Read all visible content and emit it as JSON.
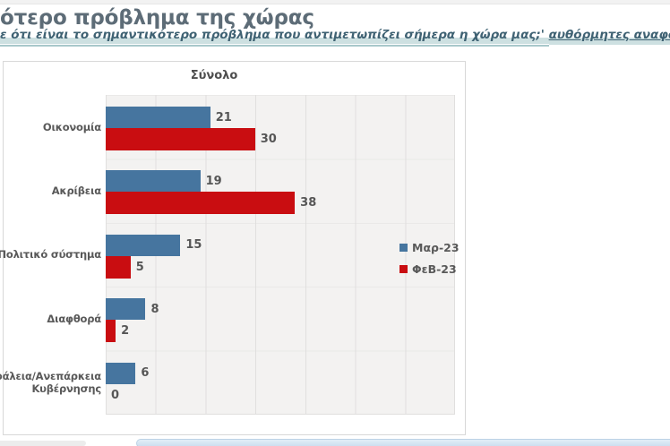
{
  "header": {
    "title": "ότερο πρόβλημα της χώρας",
    "subtitle_main": "ε ότι  είναι το σημαντικότερο πρόβλημα που αντιμετωπίζει σήμερα η χώρα μας;' ",
    "subtitle_link": "αυθόρμητες αναφορές"
  },
  "colors": {
    "series_mar": "#46759f",
    "series_feb": "#c90d11",
    "plot_background": "#f3f2f1",
    "subtitle_highlight": "#cde0e1",
    "footer_bar": "#d4e4f2"
  },
  "chart_data": {
    "type": "bar",
    "orientation": "horizontal",
    "title": "Σύνολο",
    "categories": [
      "Οικονομία",
      "Ακρίβεια",
      "τικοί-Πολιτικό σύστημα",
      "Διαφθορά",
      "νασφάλεια/Ανεπάρκεια\nΚυβέρνησης"
    ],
    "series": [
      {
        "name": "Μαρ-23",
        "color": "#46759f",
        "values": [
          21,
          19,
          15,
          8,
          6
        ]
      },
      {
        "name": "ΦεΒ-23",
        "color": "#c90d11",
        "values": [
          30,
          38,
          5,
          2,
          0
        ]
      }
    ],
    "xlim": [
      0,
      70
    ],
    "grid_interval": 10,
    "grid": true,
    "value_labels": true,
    "legend_position": "right-middle"
  }
}
